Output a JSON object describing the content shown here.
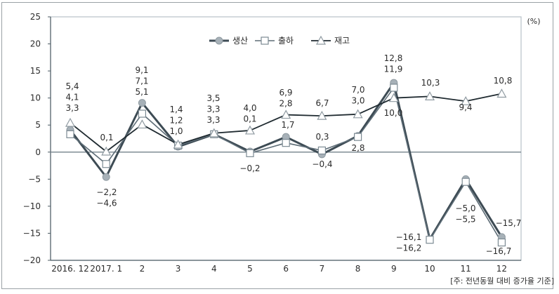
{
  "chart_data": {
    "type": "line",
    "title": "",
    "xlabel": "",
    "ylabel": "",
    "unit_label": "(%)",
    "note": "[주: 전년동월 대비 증가율 기준]",
    "categories": [
      "2016. 12",
      "2017. 1",
      "2",
      "3",
      "4",
      "5",
      "6",
      "7",
      "8",
      "9",
      "10",
      "11",
      "12"
    ],
    "ylim": [
      -20,
      25
    ],
    "yticks": [
      25,
      20,
      15,
      10,
      5,
      0,
      -5,
      -10,
      -15,
      -20
    ],
    "grid": false,
    "legend_position": "top-center",
    "series": [
      {
        "name": "생산",
        "marker": "circle",
        "color": "#3d4b54",
        "marker_fill": "#a7b1b8",
        "values": [
          4.1,
          -4.6,
          9.1,
          1.0,
          3.3,
          0.1,
          2.8,
          -0.4,
          3.0,
          12.8,
          -16.1,
          -5.0,
          -15.7
        ]
      },
      {
        "name": "출하",
        "marker": "square",
        "color": "#5e6d77",
        "marker_fill": "#ffffff",
        "values": [
          3.3,
          -2.2,
          7.1,
          1.2,
          3.3,
          -0.2,
          1.7,
          0.3,
          2.8,
          11.9,
          -16.2,
          -5.5,
          -16.7
        ]
      },
      {
        "name": "재고",
        "marker": "triangle",
        "color": "#1f2a30",
        "marker_fill": "#ffffff",
        "values": [
          5.4,
          0.1,
          5.1,
          1.4,
          3.5,
          4.0,
          6.9,
          6.7,
          7.0,
          10.0,
          10.3,
          9.4,
          10.8
        ]
      }
    ],
    "data_labels": [
      [
        "5,4",
        "4,1",
        "3,3"
      ],
      [
        "0,1"
      ],
      [
        "-2,2",
        "-4,6"
      ],
      [
        "9,1",
        "7,1",
        "5,1"
      ],
      [
        "1,4",
        "1,2",
        "1,0"
      ],
      [
        "3,5",
        "3,3",
        "3,3"
      ],
      [
        "4,0",
        "0,1"
      ],
      [
        "-0,2"
      ],
      [
        "6,9",
        "2,8"
      ],
      [
        "1,7"
      ],
      [
        "6,7"
      ],
      [
        "0,3"
      ],
      [
        "-0,4"
      ],
      [
        "7,0",
        "3,0"
      ],
      [
        "2,8"
      ],
      [
        "12,8",
        "11,9"
      ],
      [
        "10,0"
      ],
      [
        "10,3"
      ],
      [
        "-16,1",
        "-16,2"
      ],
      [
        "9,4"
      ],
      [
        "-5,0",
        "-5,5"
      ],
      [
        "10,8"
      ],
      [
        "-15,7"
      ],
      [
        "-16,7"
      ]
    ]
  }
}
